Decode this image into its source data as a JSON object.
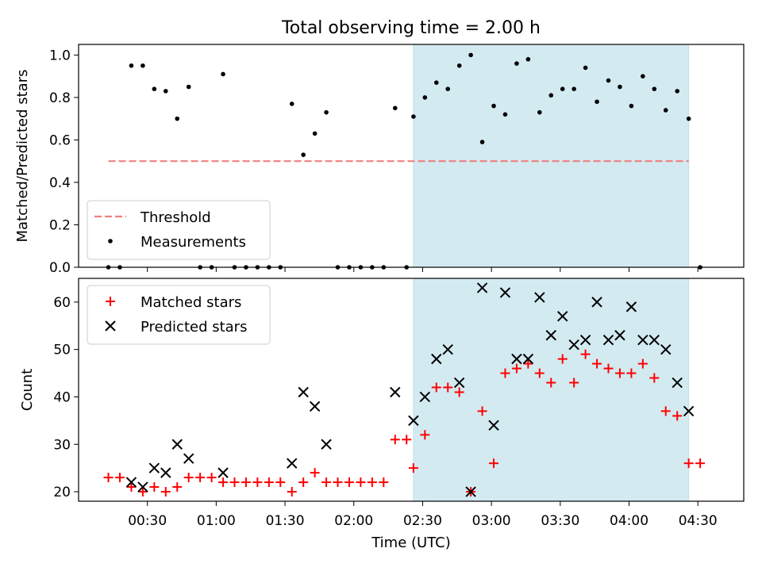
{
  "chart_data": {
    "title": "Total observing time = 2.00 h",
    "xlabel": "Time (UTC)",
    "x_unit": "minutes after 00:00 UTC",
    "xlim": [
      0,
      290
    ],
    "xticks": [
      {
        "value": 30,
        "label": "00:30"
      },
      {
        "value": 60,
        "label": "01:00"
      },
      {
        "value": 90,
        "label": "01:30"
      },
      {
        "value": 120,
        "label": "02:00"
      },
      {
        "value": 150,
        "label": "02:30"
      },
      {
        "value": 180,
        "label": "03:00"
      },
      {
        "value": 210,
        "label": "03:30"
      },
      {
        "value": 240,
        "label": "04:00"
      },
      {
        "value": 270,
        "label": "04:30"
      }
    ],
    "shaded_interval": {
      "x": [
        146,
        266
      ],
      "color": "#d3eaf1"
    },
    "panels": [
      {
        "id": "ratio",
        "type": "scatter",
        "ylabel": "Matched/Predicted stars",
        "ylim": [
          0,
          1.05
        ],
        "yticks": [
          {
            "value": 0,
            "label": "0.0"
          },
          {
            "value": 0.2,
            "label": "0.2"
          },
          {
            "value": 0.4,
            "label": "0.4"
          },
          {
            "value": 0.6,
            "label": "0.6"
          },
          {
            "value": 0.8,
            "label": "0.8"
          },
          {
            "value": 1.0,
            "label": "1.0"
          }
        ],
        "threshold": {
          "name": "Threshold",
          "y": 0.5,
          "x_range": [
            13,
            266
          ],
          "color": "#f08080",
          "style": "dashed"
        },
        "series": [
          {
            "name": "Measurements",
            "marker": "dot",
            "color": "#000000",
            "points": [
              [
                13,
                0
              ],
              [
                18,
                0
              ],
              [
                23,
                0.95
              ],
              [
                28,
                0.95
              ],
              [
                33,
                0.84
              ],
              [
                38,
                0.83
              ],
              [
                43,
                0.7
              ],
              [
                48,
                0.85
              ],
              [
                53,
                0
              ],
              [
                58,
                0
              ],
              [
                63,
                0.91
              ],
              [
                68,
                0
              ],
              [
                73,
                0
              ],
              [
                78,
                0
              ],
              [
                83,
                0
              ],
              [
                88,
                0
              ],
              [
                93,
                0.77
              ],
              [
                98,
                0.53
              ],
              [
                103,
                0.63
              ],
              [
                108,
                0.73
              ],
              [
                113,
                0
              ],
              [
                118,
                0
              ],
              [
                123,
                0
              ],
              [
                128,
                0
              ],
              [
                133,
                0
              ],
              [
                138,
                0.75
              ],
              [
                143,
                0
              ],
              [
                146,
                0.71
              ],
              [
                151,
                0.8
              ],
              [
                156,
                0.87
              ],
              [
                161,
                0.84
              ],
              [
                166,
                0.95
              ],
              [
                171,
                1.0
              ],
              [
                176,
                0.59
              ],
              [
                181,
                0.76
              ],
              [
                186,
                0.72
              ],
              [
                191,
                0.96
              ],
              [
                196,
                0.98
              ],
              [
                201,
                0.73
              ],
              [
                206,
                0.81
              ],
              [
                211,
                0.84
              ],
              [
                216,
                0.84
              ],
              [
                221,
                0.94
              ],
              [
                226,
                0.78
              ],
              [
                231,
                0.88
              ],
              [
                236,
                0.85
              ],
              [
                241,
                0.76
              ],
              [
                246,
                0.9
              ],
              [
                251,
                0.84
              ],
              [
                256,
                0.74
              ],
              [
                261,
                0.83
              ],
              [
                266,
                0.7
              ],
              [
                271,
                0
              ]
            ]
          }
        ],
        "legend": {
          "position": "lower left",
          "entries": [
            "Threshold",
            "Measurements"
          ]
        }
      },
      {
        "id": "counts",
        "type": "scatter",
        "ylabel": "Count",
        "ylim": [
          18,
          65
        ],
        "yticks": [
          {
            "value": 20,
            "label": "20"
          },
          {
            "value": 30,
            "label": "30"
          },
          {
            "value": 40,
            "label": "40"
          },
          {
            "value": 50,
            "label": "50"
          },
          {
            "value": 60,
            "label": "60"
          }
        ],
        "series": [
          {
            "name": "Matched stars",
            "marker": "plus",
            "color": "#ff0000",
            "points": [
              [
                13,
                23
              ],
              [
                18,
                23
              ],
              [
                23,
                21
              ],
              [
                28,
                20
              ],
              [
                33,
                21
              ],
              [
                38,
                20
              ],
              [
                43,
                21
              ],
              [
                48,
                23
              ],
              [
                53,
                23
              ],
              [
                58,
                23
              ],
              [
                63,
                22
              ],
              [
                68,
                22
              ],
              [
                73,
                22
              ],
              [
                78,
                22
              ],
              [
                83,
                22
              ],
              [
                88,
                22
              ],
              [
                93,
                20
              ],
              [
                98,
                22
              ],
              [
                103,
                24
              ],
              [
                108,
                22
              ],
              [
                113,
                22
              ],
              [
                118,
                22
              ],
              [
                123,
                22
              ],
              [
                128,
                22
              ],
              [
                133,
                22
              ],
              [
                138,
                31
              ],
              [
                143,
                31
              ],
              [
                146,
                25
              ],
              [
                151,
                32
              ],
              [
                156,
                42
              ],
              [
                161,
                42
              ],
              [
                166,
                41
              ],
              [
                171,
                20
              ],
              [
                176,
                37
              ],
              [
                181,
                26
              ],
              [
                186,
                45
              ],
              [
                191,
                46
              ],
              [
                196,
                47
              ],
              [
                201,
                45
              ],
              [
                206,
                43
              ],
              [
                211,
                48
              ],
              [
                216,
                43
              ],
              [
                221,
                49
              ],
              [
                226,
                47
              ],
              [
                231,
                46
              ],
              [
                236,
                45
              ],
              [
                241,
                45
              ],
              [
                246,
                47
              ],
              [
                251,
                44
              ],
              [
                256,
                37
              ],
              [
                261,
                36
              ],
              [
                266,
                26
              ],
              [
                271,
                26
              ]
            ]
          },
          {
            "name": "Predicted stars",
            "marker": "x",
            "color": "#000000",
            "points": [
              [
                23,
                22
              ],
              [
                28,
                21
              ],
              [
                33,
                25
              ],
              [
                38,
                24
              ],
              [
                43,
                30
              ],
              [
                48,
                27
              ],
              [
                63,
                24
              ],
              [
                93,
                26
              ],
              [
                98,
                41
              ],
              [
                103,
                38
              ],
              [
                108,
                30
              ],
              [
                138,
                41
              ],
              [
                146,
                35
              ],
              [
                151,
                40
              ],
              [
                156,
                48
              ],
              [
                161,
                50
              ],
              [
                166,
                43
              ],
              [
                171,
                20
              ],
              [
                176,
                63
              ],
              [
                181,
                34
              ],
              [
                186,
                62
              ],
              [
                191,
                48
              ],
              [
                196,
                48
              ],
              [
                201,
                61
              ],
              [
                206,
                53
              ],
              [
                211,
                57
              ],
              [
                216,
                51
              ],
              [
                221,
                52
              ],
              [
                226,
                60
              ],
              [
                231,
                52
              ],
              [
                236,
                53
              ],
              [
                241,
                59
              ],
              [
                246,
                52
              ],
              [
                251,
                52
              ],
              [
                256,
                50
              ],
              [
                261,
                43
              ],
              [
                266,
                37
              ]
            ]
          }
        ],
        "legend": {
          "position": "upper left",
          "entries": [
            "Matched stars",
            "Predicted stars"
          ]
        }
      }
    ]
  }
}
